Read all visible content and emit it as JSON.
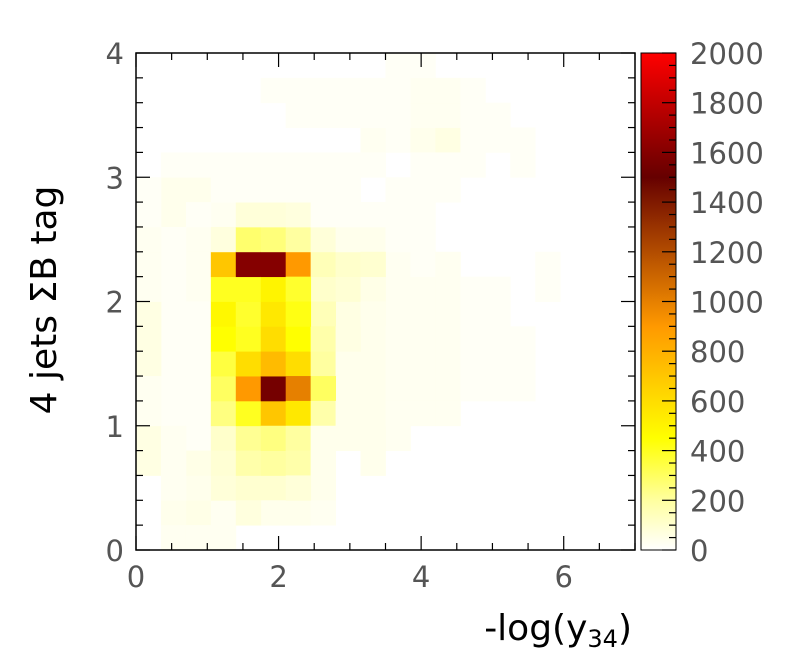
{
  "chart_data": {
    "type": "heatmap",
    "title": "",
    "xlabel": "-log(y",
    "xlabel_sub": "34",
    "xlabel_close": ")",
    "ylabel": "4 jets ΣB tag",
    "xlim": [
      0,
      7
    ],
    "ylim": [
      0,
      4
    ],
    "x_ticks": [
      "0",
      "2",
      "4",
      "6"
    ],
    "y_ticks": [
      "0",
      "1",
      "2",
      "3",
      "4"
    ],
    "x_bin_width": 0.35,
    "y_bin_width": 0.2,
    "colorbar": {
      "range": [
        0,
        2000
      ],
      "ticks": [
        "0",
        "200",
        "400",
        "600",
        "800",
        "1000",
        "1200",
        "1400",
        "1600",
        "1800",
        "2000"
      ],
      "stops": [
        {
          "value": 0,
          "color": "#ffffff"
        },
        {
          "value": 200,
          "color": "#ffffa0"
        },
        {
          "value": 450,
          "color": "#ffff00"
        },
        {
          "value": 900,
          "color": "#ff9900"
        },
        {
          "value": 1500,
          "color": "#660000"
        },
        {
          "value": 2000,
          "color": "#ff0000"
        }
      ]
    },
    "cells": [
      [
        11,
        19,
        20
      ],
      [
        10,
        19,
        20
      ],
      [
        10,
        16,
        20
      ],
      [
        9,
        16,
        30
      ],
      [
        11,
        16,
        40
      ],
      [
        12,
        16,
        60
      ],
      [
        11,
        14,
        20
      ],
      [
        11,
        15,
        20
      ],
      [
        10,
        17,
        20
      ],
      [
        10,
        18,
        20
      ],
      [
        12,
        17,
        30
      ],
      [
        12,
        18,
        30
      ],
      [
        11,
        17,
        30
      ],
      [
        11,
        18,
        30
      ],
      [
        9,
        17,
        20
      ],
      [
        9,
        18,
        20
      ],
      [
        8,
        17,
        20
      ],
      [
        8,
        18,
        20
      ],
      [
        13,
        15,
        20
      ],
      [
        13,
        16,
        20
      ],
      [
        14,
        16,
        20
      ],
      [
        14,
        17,
        20
      ],
      [
        15,
        15,
        20
      ],
      [
        15,
        16,
        20
      ],
      [
        13,
        17,
        20
      ],
      [
        13,
        18,
        20
      ],
      [
        7,
        17,
        20
      ],
      [
        7,
        18,
        20
      ],
      [
        6,
        17,
        20
      ],
      [
        6,
        18,
        20
      ],
      [
        5,
        18,
        20
      ],
      [
        1,
        13,
        40
      ],
      [
        1,
        14,
        40
      ],
      [
        2,
        14,
        40
      ],
      [
        2,
        12,
        30
      ],
      [
        2,
        11,
        30
      ],
      [
        2,
        10,
        30
      ],
      [
        3,
        13,
        30
      ],
      [
        1,
        12,
        20
      ],
      [
        1,
        11,
        20
      ],
      [
        1,
        10,
        20
      ],
      [
        1,
        9,
        20
      ],
      [
        1,
        8,
        20
      ],
      [
        1,
        7,
        20
      ],
      [
        1,
        6,
        20
      ],
      [
        1,
        5,
        20
      ],
      [
        2,
        4,
        20
      ],
      [
        2,
        5,
        20
      ],
      [
        2,
        6,
        20
      ],
      [
        2,
        7,
        20
      ],
      [
        2,
        8,
        20
      ],
      [
        2,
        9,
        20
      ],
      [
        2,
        13,
        20
      ],
      [
        3,
        4,
        20
      ],
      [
        3,
        5,
        20
      ],
      [
        3,
        6,
        20
      ],
      [
        3,
        7,
        20
      ],
      [
        3,
        8,
        20
      ],
      [
        3,
        9,
        20
      ],
      [
        3,
        10,
        20
      ],
      [
        3,
        11,
        20
      ],
      [
        3,
        12,
        20
      ],
      [
        4,
        4,
        20
      ],
      [
        4,
        5,
        20
      ],
      [
        4,
        6,
        20
      ],
      [
        4,
        7,
        20
      ],
      [
        4,
        8,
        20
      ],
      [
        4,
        9,
        20
      ],
      [
        4,
        10,
        20
      ],
      [
        4,
        11,
        20
      ],
      [
        4,
        12,
        20
      ],
      [
        4,
        13,
        20
      ],
      [
        5,
        5,
        20
      ],
      [
        5,
        6,
        20
      ],
      [
        5,
        7,
        20
      ],
      [
        5,
        8,
        20
      ],
      [
        5,
        9,
        20
      ],
      [
        5,
        10,
        20
      ],
      [
        5,
        11,
        20
      ],
      [
        5,
        12,
        20
      ],
      [
        5,
        13,
        20
      ],
      [
        6,
        7,
        20
      ],
      [
        6,
        8,
        20
      ],
      [
        6,
        11,
        20
      ],
      [
        6,
        12,
        20
      ],
      [
        6,
        13,
        20
      ],
      [
        7,
        7,
        20
      ],
      [
        7,
        10,
        20
      ],
      [
        7,
        11,
        20
      ],
      [
        7,
        12,
        20
      ],
      [
        7,
        13,
        20
      ],
      [
        8,
        6,
        20
      ],
      [
        8,
        7,
        20
      ],
      [
        8,
        9,
        20
      ],
      [
        8,
        10,
        20
      ],
      [
        8,
        11,
        20
      ],
      [
        8,
        12,
        20
      ],
      [
        8,
        13,
        20
      ],
      [
        9,
        7,
        20
      ],
      [
        9,
        8,
        20
      ],
      [
        9,
        12,
        20
      ],
      [
        9,
        13,
        20
      ],
      [
        10,
        4,
        20
      ],
      [
        10,
        9,
        20
      ],
      [
        10,
        10,
        20
      ],
      [
        10,
        11,
        20
      ],
      [
        10,
        12,
        20
      ],
      [
        10,
        13,
        20
      ],
      [
        10,
        14,
        20
      ],
      [
        11,
        10,
        20
      ],
      [
        11,
        11,
        20
      ],
      [
        11,
        12,
        20
      ],
      [
        11,
        13,
        20
      ],
      [
        0,
        3,
        60
      ],
      [
        0,
        4,
        60
      ],
      [
        0,
        7,
        60
      ],
      [
        0,
        8,
        60
      ],
      [
        0,
        9,
        60
      ],
      [
        2,
        1,
        50
      ],
      [
        1,
        1,
        40
      ],
      [
        2,
        2,
        40
      ],
      [
        2,
        3,
        50
      ],
      [
        1,
        2,
        30
      ],
      [
        1,
        3,
        30
      ],
      [
        1,
        4,
        30
      ],
      [
        0,
        5,
        30
      ],
      [
        0,
        6,
        30
      ],
      [
        0,
        10,
        30
      ],
      [
        0,
        11,
        30
      ],
      [
        0,
        12,
        30
      ],
      [
        1,
        0,
        30
      ],
      [
        2,
        0,
        30
      ],
      [
        3,
        0,
        30
      ],
      [
        3,
        1,
        30
      ],
      [
        3,
        2,
        30
      ],
      [
        3,
        3,
        30
      ],
      [
        4,
        2,
        30
      ],
      [
        4,
        3,
        30
      ],
      [
        5,
        2,
        30
      ],
      [
        5,
        3,
        30
      ],
      [
        5,
        4,
        30
      ],
      [
        0,
        13,
        20
      ],
      [
        0,
        14,
        20
      ],
      [
        1,
        15,
        20
      ],
      [
        2,
        15,
        20
      ],
      [
        3,
        14,
        20
      ],
      [
        3,
        15,
        20
      ],
      [
        4,
        14,
        20
      ],
      [
        4,
        15,
        20
      ],
      [
        5,
        14,
        20
      ],
      [
        5,
        15,
        20
      ],
      [
        6,
        14,
        20
      ],
      [
        6,
        15,
        20
      ],
      [
        7,
        14,
        20
      ],
      [
        7,
        15,
        20
      ],
      [
        8,
        14,
        20
      ],
      [
        8,
        15,
        20
      ],
      [
        9,
        15,
        20
      ],
      [
        12,
        14,
        20
      ],
      [
        12,
        15,
        20
      ],
      [
        3,
        12,
        70
      ],
      [
        4,
        11,
        90
      ],
      [
        4,
        13,
        80
      ],
      [
        5,
        13,
        80
      ],
      [
        6,
        13,
        70
      ],
      [
        6,
        12,
        60
      ],
      [
        7,
        12,
        50
      ],
      [
        8,
        10,
        50
      ],
      [
        9,
        10,
        50
      ],
      [
        6,
        10,
        60
      ],
      [
        7,
        10,
        50
      ],
      [
        7,
        9,
        50
      ],
      [
        7,
        8,
        50
      ],
      [
        6,
        7,
        60
      ],
      [
        7,
        7,
        50
      ],
      [
        6,
        6,
        60
      ],
      [
        6,
        5,
        60
      ],
      [
        7,
        6,
        50
      ],
      [
        7,
        5,
        50
      ],
      [
        6,
        4,
        50
      ],
      [
        6,
        3,
        50
      ],
      [
        7,
        4,
        40
      ],
      [
        7,
        3,
        40
      ],
      [
        5,
        1,
        40
      ],
      [
        6,
        1,
        40
      ],
      [
        7,
        2,
        40
      ],
      [
        7,
        1,
        30
      ],
      [
        8,
        4,
        40
      ],
      [
        8,
        5,
        40
      ],
      [
        8,
        6,
        40
      ],
      [
        8,
        7,
        40
      ],
      [
        8,
        8,
        40
      ],
      [
        8,
        11,
        40
      ],
      [
        8,
        12,
        40
      ],
      [
        9,
        11,
        40
      ],
      [
        9,
        12,
        40
      ],
      [
        9,
        9,
        40
      ],
      [
        9,
        8,
        40
      ],
      [
        9,
        7,
        40
      ],
      [
        9,
        6,
        40
      ],
      [
        9,
        5,
        40
      ],
      [
        9,
        4,
        40
      ],
      [
        9,
        3,
        40
      ],
      [
        10,
        11,
        30
      ],
      [
        10,
        10,
        30
      ],
      [
        10,
        9,
        30
      ],
      [
        10,
        8,
        30
      ],
      [
        10,
        7,
        30
      ],
      [
        10,
        6,
        30
      ],
      [
        10,
        5,
        30
      ],
      [
        10,
        4,
        30
      ],
      [
        11,
        10,
        30
      ],
      [
        11,
        9,
        30
      ],
      [
        11,
        8,
        30
      ],
      [
        11,
        7,
        30
      ],
      [
        11,
        6,
        30
      ],
      [
        11,
        5,
        30
      ],
      [
        12,
        9,
        30
      ],
      [
        12,
        8,
        30
      ],
      [
        12,
        7,
        30
      ],
      [
        12,
        6,
        30
      ],
      [
        12,
        5,
        30
      ],
      [
        12,
        10,
        30
      ],
      [
        12,
        11,
        30
      ],
      [
        13,
        10,
        20
      ],
      [
        13,
        9,
        20
      ],
      [
        13,
        8,
        20
      ],
      [
        13,
        7,
        20
      ],
      [
        13,
        6,
        20
      ],
      [
        14,
        8,
        20
      ],
      [
        14,
        9,
        20
      ],
      [
        14,
        10,
        20
      ],
      [
        14,
        7,
        20
      ],
      [
        14,
        6,
        20
      ],
      [
        15,
        8,
        20
      ],
      [
        15,
        7,
        20
      ],
      [
        15,
        6,
        20
      ],
      [
        16,
        11,
        20
      ],
      [
        16,
        10,
        20
      ],
      [
        3,
        11,
        100
      ],
      [
        3,
        10,
        90
      ],
      [
        3,
        9,
        80
      ],
      [
        3,
        8,
        90
      ],
      [
        3,
        7,
        100
      ],
      [
        3,
        6,
        110
      ],
      [
        3,
        5,
        120
      ],
      [
        3,
        4,
        110
      ],
      [
        3,
        3,
        90
      ],
      [
        3,
        2,
        80
      ],
      [
        4,
        4,
        130
      ],
      [
        4,
        3,
        110
      ],
      [
        4,
        2,
        100
      ],
      [
        4,
        1,
        70
      ],
      [
        5,
        5,
        150
      ],
      [
        5,
        4,
        140
      ],
      [
        5,
        3,
        120
      ],
      [
        5,
        2,
        100
      ],
      [
        6,
        2,
        80
      ],
      [
        4,
        5,
        150
      ],
      [
        4,
        6,
        140
      ],
      [
        4,
        7,
        130
      ],
      [
        4,
        8,
        140
      ],
      [
        4,
        9,
        130
      ],
      [
        4,
        10,
        150
      ],
      [
        4,
        12,
        120
      ],
      [
        5,
        12,
        110
      ],
      [
        6,
        11,
        110
      ],
      [
        7,
        11,
        90
      ],
      [
        7,
        12,
        80
      ],
      [
        5,
        11,
        130
      ],
      [
        5,
        10,
        160
      ],
      [
        5,
        9,
        160
      ],
      [
        5,
        8,
        160
      ],
      [
        5,
        7,
        170
      ],
      [
        5,
        6,
        160
      ],
      [
        6,
        9,
        110
      ],
      [
        6,
        8,
        110
      ],
      [
        8,
        9,
        60
      ],
      [
        8,
        8,
        60
      ],
      [
        3,
        6,
        220
      ],
      [
        3,
        5,
        250
      ],
      [
        3,
        7,
        350
      ],
      [
        3,
        8,
        420
      ],
      [
        3,
        9,
        450
      ],
      [
        3,
        10,
        350
      ],
      [
        3,
        11,
        250
      ],
      [
        4,
        5,
        300
      ],
      [
        4,
        4,
        250
      ],
      [
        4,
        12,
        280
      ],
      [
        5,
        12,
        260
      ],
      [
        6,
        12,
        200
      ],
      [
        4,
        11,
        600
      ],
      [
        6,
        11,
        350
      ],
      [
        6,
        10,
        320
      ],
      [
        6,
        9,
        200
      ],
      [
        6,
        8,
        150
      ],
      [
        6,
        7,
        180
      ],
      [
        6,
        6,
        220
      ],
      [
        7,
        6,
        120
      ],
      [
        7,
        11,
        150
      ],
      [
        7,
        10,
        110
      ],
      [
        8,
        10,
        90
      ],
      [
        8,
        11,
        110
      ],
      [
        9,
        11,
        100
      ],
      [
        5,
        4,
        250
      ],
      [
        5,
        5,
        250
      ],
      [
        4,
        11,
        1600
      ],
      [
        5,
        11,
        1600
      ],
      [
        6,
        11,
        900
      ],
      [
        3,
        11,
        700
      ],
      [
        4,
        10,
        400
      ],
      [
        5,
        10,
        500
      ],
      [
        6,
        10,
        380
      ],
      [
        4,
        9,
        380
      ],
      [
        5,
        9,
        550
      ],
      [
        6,
        9,
        420
      ],
      [
        4,
        8,
        400
      ],
      [
        5,
        8,
        600
      ],
      [
        6,
        8,
        450
      ],
      [
        4,
        7,
        600
      ],
      [
        5,
        7,
        750
      ],
      [
        6,
        7,
        600
      ],
      [
        4,
        6,
        900
      ],
      [
        5,
        6,
        1550
      ],
      [
        6,
        6,
        1000
      ],
      [
        7,
        6,
        300
      ],
      [
        4,
        5,
        400
      ],
      [
        5,
        5,
        700
      ],
      [
        6,
        5,
        550
      ],
      [
        7,
        5,
        180
      ],
      [
        4,
        4,
        220
      ],
      [
        5,
        4,
        250
      ],
      [
        6,
        4,
        200
      ],
      [
        4,
        3,
        180
      ],
      [
        5,
        3,
        200
      ],
      [
        6,
        3,
        180
      ],
      [
        7,
        7,
        200
      ],
      [
        7,
        8,
        180
      ],
      [
        7,
        9,
        150
      ],
      [
        3,
        6,
        300
      ],
      [
        3,
        8,
        450
      ],
      [
        3,
        9,
        480
      ],
      [
        3,
        10,
        400
      ]
    ]
  }
}
